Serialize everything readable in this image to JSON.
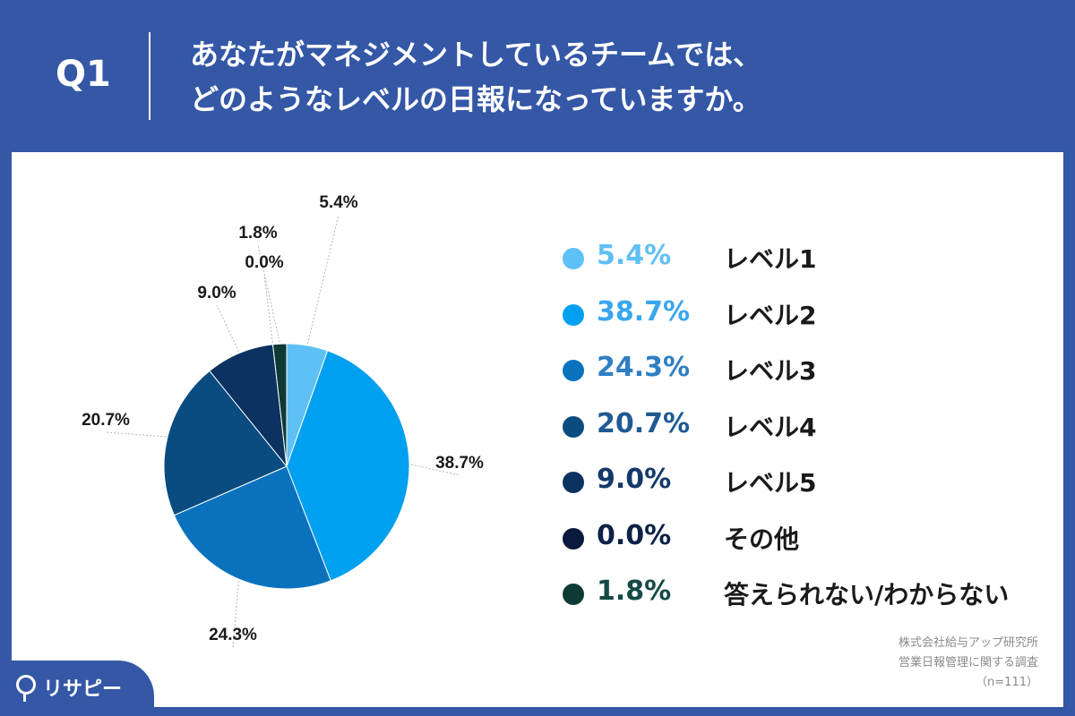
{
  "header": {
    "question": "Q1",
    "title_line1": "あなたがマネジメントしているチームでは、",
    "title_line2": "どのようなレベルの日報になっていますか。"
  },
  "chart_data": {
    "type": "pie",
    "categories": [
      "レベル1",
      "レベル2",
      "レベル3",
      "レベル4",
      "レベル5",
      "その他",
      "答えられない/わからない"
    ],
    "values": [
      5.4,
      38.7,
      24.3,
      20.7,
      9.0,
      0.0,
      1.8
    ],
    "labels": [
      "5.4%",
      "38.7%",
      "24.3%",
      "20.7%",
      "9.0%",
      "0.0%",
      "1.8%"
    ],
    "colors": [
      "#5ec0f5",
      "#00a0f0",
      "#0a72bd",
      "#0a4c80",
      "#0b3260",
      "#0a1a3c",
      "#0d3a35"
    ],
    "legend_pct_colors": [
      "#5ec0f5",
      "#3aa6f0",
      "#2f7fc4",
      "#1f5a92",
      "#14386c",
      "#0c2246",
      "#134a44"
    ],
    "legend_position": "right"
  },
  "source": {
    "line1": "株式会社給与アップ研究所",
    "line2": "営業日報管理に関する調査",
    "line3": "（n=111）"
  },
  "brand": {
    "name": "リサピー"
  }
}
